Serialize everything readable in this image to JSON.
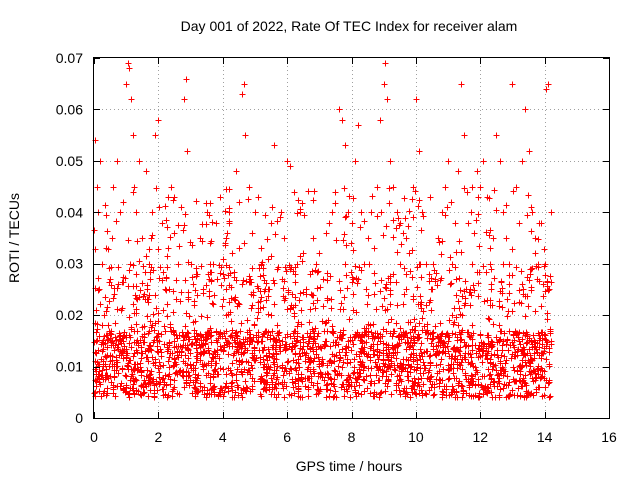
{
  "chart_data": {
    "type": "scatter",
    "title": "Day 001 of 2022, Rate Of TEC Index for receiver alam",
    "xlabel": "GPS time / hours",
    "ylabel": "ROTI / TECUs",
    "xlim": [
      0,
      16
    ],
    "ylim": [
      0,
      0.07
    ],
    "xticks": [
      0,
      2,
      4,
      6,
      8,
      10,
      12,
      14,
      16
    ],
    "xtick_labels": [
      "0",
      "2",
      "4",
      "6",
      "8",
      "10",
      "12",
      "14",
      "16"
    ],
    "yticks": [
      0,
      0.01,
      0.02,
      0.03,
      0.04,
      0.05,
      0.06,
      0.07
    ],
    "ytick_labels": [
      "0",
      "0.01",
      "0.02",
      "0.03",
      "0.04",
      "0.05",
      "0.06",
      "0.07"
    ],
    "grid": true,
    "marker": "+",
    "marker_color": "#ff0000",
    "series": [
      {
        "name": "ROTI",
        "x": [
          0.03,
          0.08,
          0.12,
          0.2,
          0.25,
          0.3,
          0.05,
          0.15,
          0.35,
          0.45,
          0.55,
          0.6,
          0.7,
          0.8,
          0.9,
          1.0,
          1.05,
          1.1,
          1.15,
          1.2,
          1.25,
          1.3,
          1.4,
          1.5,
          1.6,
          1.7,
          1.8,
          1.9,
          2.0,
          2.1,
          2.2,
          2.3,
          2.4,
          2.5,
          2.6,
          2.7,
          2.8,
          2.85,
          2.9,
          3.0,
          3.1,
          3.2,
          3.3,
          3.4,
          3.5,
          3.6,
          3.7,
          3.8,
          3.9,
          4.0,
          4.1,
          4.2,
          4.3,
          4.4,
          4.5,
          4.6,
          4.65,
          4.7,
          4.8,
          4.9,
          5.0,
          5.1,
          5.2,
          5.3,
          5.4,
          5.5,
          5.6,
          5.7,
          5.8,
          5.9,
          6.0,
          6.1,
          6.2,
          6.3,
          6.4,
          6.5,
          6.6,
          6.7,
          6.8,
          6.9,
          7.0,
          7.1,
          7.2,
          7.3,
          7.4,
          7.5,
          7.6,
          7.7,
          7.8,
          7.9,
          8.0,
          8.1,
          8.2,
          8.3,
          8.4,
          8.5,
          8.6,
          8.7,
          8.8,
          8.9,
          9.0,
          9.05,
          9.1,
          9.2,
          9.3,
          9.4,
          9.5,
          9.6,
          9.7,
          9.8,
          9.9,
          10.0,
          10.1,
          10.2,
          10.3,
          10.4,
          10.5,
          10.6,
          10.7,
          10.8,
          10.9,
          11.0,
          11.1,
          11.2,
          11.3,
          11.4,
          11.5,
          11.6,
          11.7,
          11.8,
          11.9,
          12.0,
          12.1,
          12.2,
          12.3,
          12.4,
          12.5,
          12.6,
          12.7,
          12.8,
          12.9,
          13.0,
          13.1,
          13.2,
          13.3,
          13.4,
          13.5,
          13.6,
          13.7,
          13.8,
          13.9,
          14.0,
          14.05,
          14.1,
          14.15,
          14.2
        ],
        "y": [
          0.054,
          0.045,
          0.04,
          0.05,
          0.03,
          0.02,
          0.015,
          0.025,
          0.012,
          0.018,
          0.035,
          0.045,
          0.05,
          0.04,
          0.042,
          0.065,
          0.069,
          0.068,
          0.062,
          0.055,
          0.045,
          0.04,
          0.05,
          0.035,
          0.048,
          0.03,
          0.04,
          0.055,
          0.058,
          0.038,
          0.025,
          0.033,
          0.045,
          0.036,
          0.03,
          0.041,
          0.062,
          0.066,
          0.052,
          0.03,
          0.022,
          0.028,
          0.035,
          0.025,
          0.04,
          0.034,
          0.03,
          0.038,
          0.043,
          0.028,
          0.035,
          0.04,
          0.032,
          0.048,
          0.042,
          0.063,
          0.065,
          0.055,
          0.045,
          0.036,
          0.04,
          0.043,
          0.033,
          0.025,
          0.031,
          0.038,
          0.053,
          0.029,
          0.04,
          0.035,
          0.05,
          0.049,
          0.044,
          0.03,
          0.04,
          0.032,
          0.025,
          0.028,
          0.035,
          0.03,
          0.032,
          0.027,
          0.036,
          0.038,
          0.04,
          0.044,
          0.06,
          0.058,
          0.053,
          0.04,
          0.038,
          0.05,
          0.057,
          0.04,
          0.03,
          0.035,
          0.04,
          0.033,
          0.045,
          0.058,
          0.065,
          0.069,
          0.062,
          0.05,
          0.045,
          0.04,
          0.038,
          0.036,
          0.035,
          0.032,
          0.045,
          0.062,
          0.052,
          0.04,
          0.03,
          0.028,
          0.025,
          0.027,
          0.035,
          0.04,
          0.045,
          0.05,
          0.042,
          0.038,
          0.048,
          0.065,
          0.055,
          0.044,
          0.04,
          0.036,
          0.048,
          0.045,
          0.05,
          0.043,
          0.03,
          0.035,
          0.055,
          0.05,
          0.04,
          0.035,
          0.03,
          0.065,
          0.045,
          0.038,
          0.05,
          0.06,
          0.052,
          0.04,
          0.035,
          0.03,
          0.038,
          0.03,
          0.064,
          0.065,
          0.025,
          0.015
        ]
      }
    ]
  }
}
